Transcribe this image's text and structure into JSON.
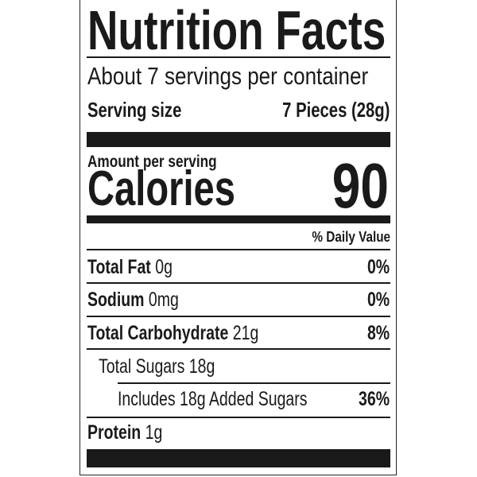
{
  "title": "Nutrition Facts",
  "servings_per_container": "About 7 servings per container",
  "serving_size": {
    "label": "Serving size",
    "value": "7 Pieces (28g)"
  },
  "amount_per_serving": "Amount per serving",
  "calories": {
    "label": "Calories",
    "value": "90"
  },
  "daily_value_header": "% Daily Value",
  "nutrients": [
    {
      "name": "Total Fat",
      "amount": "0g",
      "dv": "0%"
    },
    {
      "name": "Sodium",
      "amount": "0mg",
      "dv": "0%"
    },
    {
      "name": "Total Carbohydrate",
      "amount": "21g",
      "dv": "8%"
    },
    {
      "name": "Total Sugars 18g"
    },
    {
      "name": "Includes 18g Added Sugars",
      "dv": "36%"
    },
    {
      "name": "Protein",
      "amount": "1g"
    }
  ]
}
